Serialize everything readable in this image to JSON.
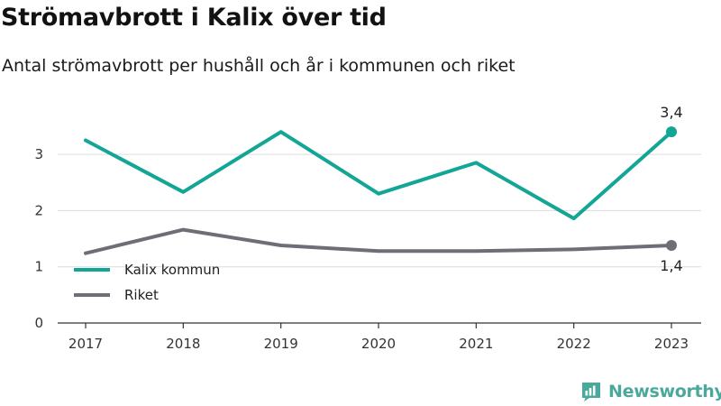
{
  "title": "Strömavbrott i Kalix över tid",
  "subtitle": "Antal strömavbrott per hushåll och år i kommunen och riket",
  "brand": {
    "name": "Newsworthy",
    "icon": "bar-chart-speech-bubble-icon",
    "color": "#4aa99b"
  },
  "chart_data": {
    "type": "line",
    "x": [
      "2017",
      "2018",
      "2019",
      "2020",
      "2021",
      "2022",
      "2023"
    ],
    "ylim": [
      0,
      3.6
    ],
    "yticks": [
      "0",
      "1",
      "2",
      "3"
    ],
    "grid": true,
    "legend_position": "bottom-left",
    "series": [
      {
        "name": "Kalix kommun",
        "color": "#13a595",
        "values": [
          3.25,
          2.33,
          3.4,
          2.3,
          2.85,
          1.86,
          3.4
        ],
        "end_label": "3,4"
      },
      {
        "name": "Riket",
        "color": "#6f6e76",
        "values": [
          1.24,
          1.66,
          1.38,
          1.28,
          1.28,
          1.31,
          1.38
        ],
        "end_label": "1,4"
      }
    ]
  }
}
